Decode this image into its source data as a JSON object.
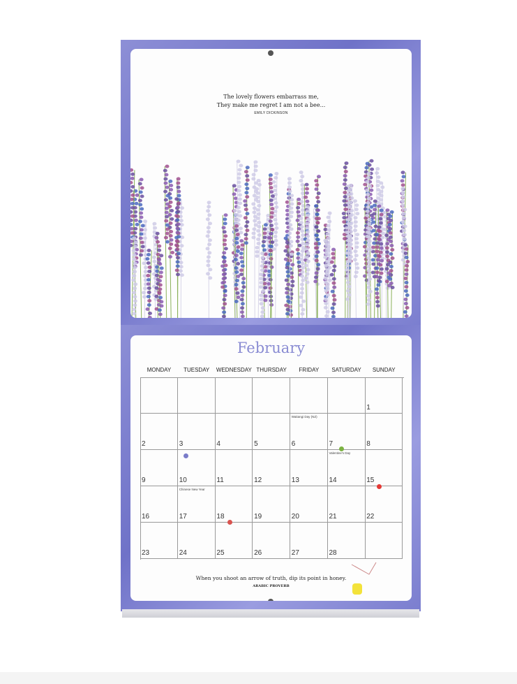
{
  "top_page": {
    "quote": [
      "The lovely flowers embarrass me,",
      "They make me regret I am not a bee..."
    ],
    "author": "EMILY DICKINSON"
  },
  "calendar": {
    "month": "February",
    "weekdays": [
      "MONDAY",
      "TUESDAY",
      "WEDNESDAY",
      "THURSDAY",
      "FRIDAY",
      "SATURDAY",
      "SUNDAY"
    ],
    "weeks": [
      [
        "",
        "",
        "",
        "",
        "",
        "",
        "1"
      ],
      [
        "2",
        "3",
        "4",
        "5",
        "6",
        "7",
        "8"
      ],
      [
        "9",
        "10",
        "11",
        "12",
        "13",
        "14",
        "15"
      ],
      [
        "16",
        "17",
        "18",
        "19",
        "20",
        "21",
        "22"
      ],
      [
        "23",
        "24",
        "25",
        "26",
        "27",
        "28",
        ""
      ]
    ],
    "events": [
      {
        "week": 1,
        "day": 4,
        "label": "Waitangi Day (NZ)"
      },
      {
        "week": 2,
        "day": 5,
        "label": "Valentine's Day"
      },
      {
        "week": 3,
        "day": 1,
        "label": "Chinese New Year"
      }
    ],
    "quote": "When you shoot an arrow of truth, dip its point in honey.",
    "author": "ARABIC PROVERB"
  },
  "colors": {
    "accent": "#8a8cd3",
    "cover": "#7275c9"
  }
}
